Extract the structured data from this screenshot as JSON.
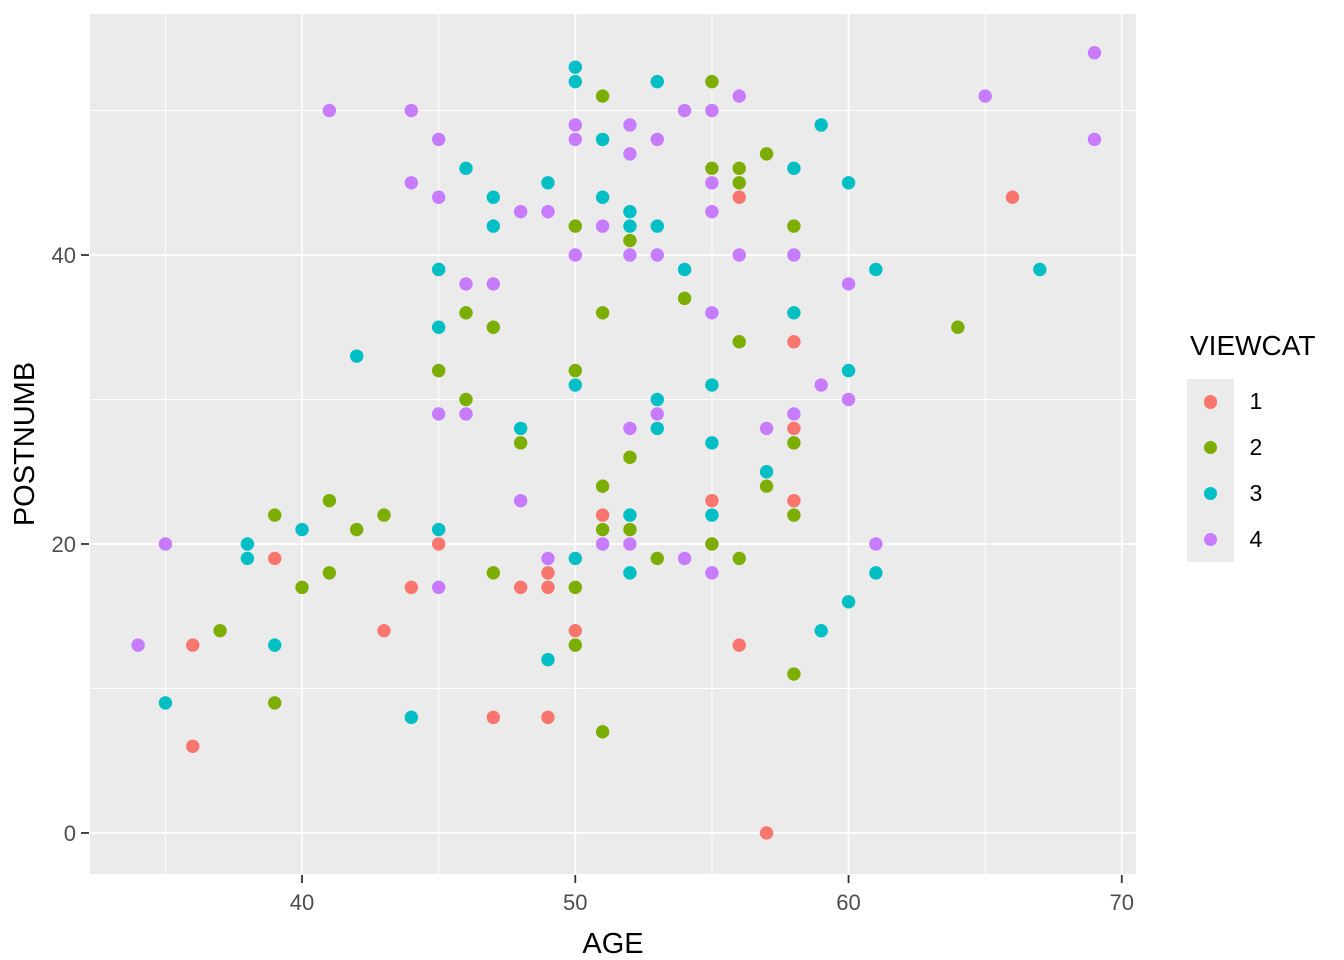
{
  "chart_data": {
    "type": "scatter",
    "title": "",
    "xlabel": "AGE",
    "ylabel": "POSTNUMB",
    "xlim": [
      32.24,
      70.52
    ],
    "ylim": [
      -2.84,
      56.68
    ],
    "x_major_ticks": [
      40,
      50,
      60,
      70
    ],
    "x_minor_gridlines": [
      35,
      45,
      55,
      65
    ],
    "y_major_ticks": [
      0,
      20,
      40
    ],
    "y_minor_gridlines": [
      10,
      30,
      50
    ],
    "grid": "on",
    "legend": {
      "title": "VIEWCAT",
      "position": "right",
      "entries": [
        {
          "label": "1",
          "color": "#F8766D"
        },
        {
          "label": "2",
          "color": "#7CAE00"
        },
        {
          "label": "3",
          "color": "#00BFC4"
        },
        {
          "label": "4",
          "color": "#C77CFF"
        }
      ]
    },
    "style": {
      "panel_bg": "#EBEBEB",
      "grid_color": "#FFFFFF",
      "tick_color": "#333333",
      "tick_label_color": "#4D4D4D",
      "axis_title_color": "#000000",
      "point_radius": 6.7
    },
    "series": [
      {
        "name": "1",
        "color": "#F8766D",
        "points": [
          [
            36,
            6
          ],
          [
            36,
            13
          ],
          [
            39,
            19
          ],
          [
            43,
            14
          ],
          [
            44,
            17
          ],
          [
            45,
            20
          ],
          [
            47,
            8
          ],
          [
            48,
            17
          ],
          [
            49,
            8
          ],
          [
            49,
            17
          ],
          [
            49,
            18
          ],
          [
            50,
            14
          ],
          [
            51,
            22
          ],
          [
            55,
            23
          ],
          [
            56,
            13
          ],
          [
            56,
            44
          ],
          [
            57,
            0
          ],
          [
            58,
            23
          ],
          [
            58,
            28
          ],
          [
            58,
            34
          ],
          [
            66,
            44
          ]
        ]
      },
      {
        "name": "2",
        "color": "#7CAE00",
        "points": [
          [
            37,
            14
          ],
          [
            39,
            9
          ],
          [
            39,
            22
          ],
          [
            40,
            17
          ],
          [
            41,
            18
          ],
          [
            41,
            23
          ],
          [
            42,
            21
          ],
          [
            43,
            22
          ],
          [
            45,
            32
          ],
          [
            46,
            30
          ],
          [
            46,
            36
          ],
          [
            47,
            18
          ],
          [
            47,
            35
          ],
          [
            48,
            27
          ],
          [
            50,
            13
          ],
          [
            50,
            17
          ],
          [
            50,
            32
          ],
          [
            50,
            42
          ],
          [
            51,
            7
          ],
          [
            51,
            21
          ],
          [
            51,
            24
          ],
          [
            51,
            36
          ],
          [
            51,
            51
          ],
          [
            52,
            21
          ],
          [
            52,
            26
          ],
          [
            52,
            41
          ],
          [
            53,
            19
          ],
          [
            54,
            37
          ],
          [
            55,
            20
          ],
          [
            55,
            46
          ],
          [
            55,
            52
          ],
          [
            56,
            19
          ],
          [
            56,
            34
          ],
          [
            56,
            45
          ],
          [
            56,
            46
          ],
          [
            57,
            24
          ],
          [
            57,
            47
          ],
          [
            58,
            11
          ],
          [
            58,
            22
          ],
          [
            58,
            27
          ],
          [
            58,
            42
          ],
          [
            64,
            35
          ]
        ]
      },
      {
        "name": "3",
        "color": "#00BFC4",
        "points": [
          [
            35,
            9
          ],
          [
            38,
            19
          ],
          [
            38,
            20
          ],
          [
            39,
            13
          ],
          [
            40,
            21
          ],
          [
            42,
            33
          ],
          [
            44,
            8
          ],
          [
            45,
            21
          ],
          [
            45,
            35
          ],
          [
            45,
            39
          ],
          [
            46,
            46
          ],
          [
            47,
            42
          ],
          [
            47,
            44
          ],
          [
            48,
            28
          ],
          [
            49,
            12
          ],
          [
            49,
            45
          ],
          [
            50,
            19
          ],
          [
            50,
            31
          ],
          [
            50,
            52
          ],
          [
            50,
            53
          ],
          [
            51,
            44
          ],
          [
            51,
            48
          ],
          [
            52,
            18
          ],
          [
            52,
            22
          ],
          [
            52,
            42
          ],
          [
            52,
            43
          ],
          [
            53,
            28
          ],
          [
            53,
            30
          ],
          [
            53,
            42
          ],
          [
            53,
            52
          ],
          [
            54,
            39
          ],
          [
            55,
            22
          ],
          [
            55,
            27
          ],
          [
            55,
            31
          ],
          [
            57,
            25
          ],
          [
            58,
            36
          ],
          [
            58,
            46
          ],
          [
            59,
            14
          ],
          [
            59,
            49
          ],
          [
            60,
            16
          ],
          [
            60,
            32
          ],
          [
            60,
            45
          ],
          [
            61,
            18
          ],
          [
            61,
            39
          ],
          [
            67,
            39
          ]
        ]
      },
      {
        "name": "4",
        "color": "#C77CFF",
        "points": [
          [
            34,
            13
          ],
          [
            35,
            20
          ],
          [
            41,
            50
          ],
          [
            44,
            45
          ],
          [
            44,
            50
          ],
          [
            45,
            17
          ],
          [
            45,
            29
          ],
          [
            45,
            44
          ],
          [
            45,
            48
          ],
          [
            46,
            29
          ],
          [
            46,
            38
          ],
          [
            47,
            38
          ],
          [
            48,
            23
          ],
          [
            48,
            43
          ],
          [
            49,
            19
          ],
          [
            49,
            43
          ],
          [
            50,
            40
          ],
          [
            50,
            48
          ],
          [
            50,
            49
          ],
          [
            51,
            20
          ],
          [
            51,
            42
          ],
          [
            52,
            20
          ],
          [
            52,
            28
          ],
          [
            52,
            40
          ],
          [
            52,
            47
          ],
          [
            52,
            49
          ],
          [
            53,
            29
          ],
          [
            53,
            40
          ],
          [
            53,
            48
          ],
          [
            54,
            19
          ],
          [
            54,
            50
          ],
          [
            55,
            18
          ],
          [
            55,
            36
          ],
          [
            55,
            43
          ],
          [
            55,
            45
          ],
          [
            55,
            50
          ],
          [
            56,
            40
          ],
          [
            56,
            51
          ],
          [
            57,
            28
          ],
          [
            58,
            29
          ],
          [
            58,
            40
          ],
          [
            59,
            31
          ],
          [
            60,
            30
          ],
          [
            60,
            38
          ],
          [
            61,
            20
          ],
          [
            65,
            51
          ],
          [
            69,
            48
          ],
          [
            69,
            54
          ]
        ]
      }
    ]
  }
}
